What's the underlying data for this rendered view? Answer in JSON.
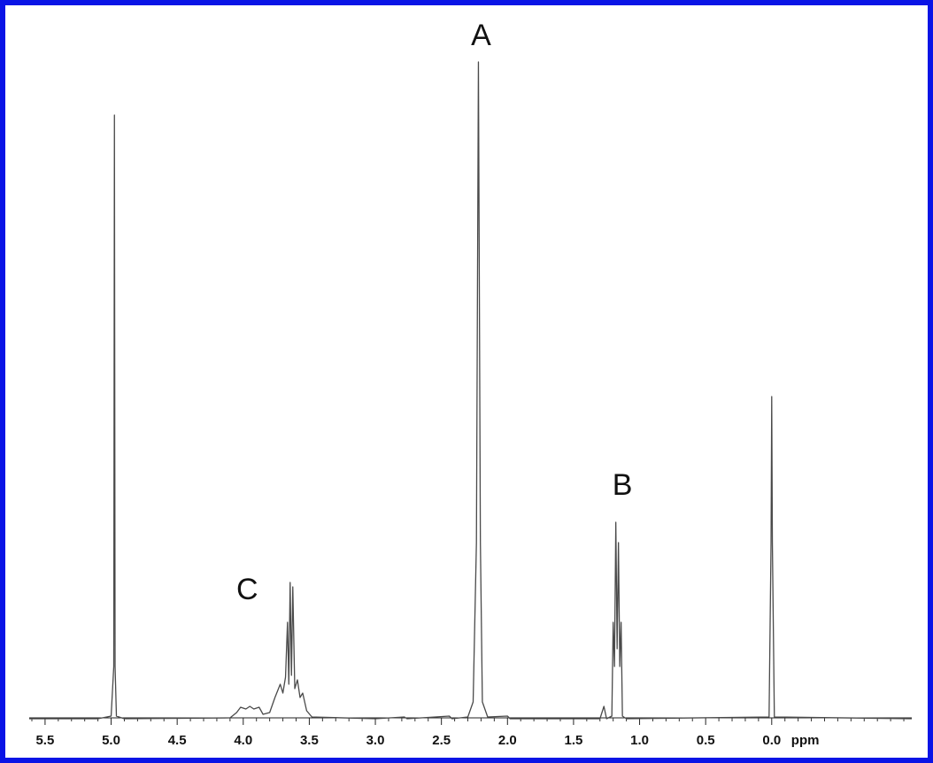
{
  "chart_data": {
    "type": "line",
    "x_label": "ppm",
    "x_reversed": true,
    "xlim": [
      5.62,
      -1.06
    ],
    "ylim": [
      0,
      760
    ],
    "xticks": [
      5.5,
      {
        "value": 5,
        "label": "5.0"
      },
      4.5,
      {
        "value": 4,
        "label": "4.0"
      },
      3.5,
      {
        "value": 3,
        "label": "3.0"
      },
      2.5,
      {
        "value": 2,
        "label": "2.0"
      },
      1.5,
      {
        "value": 1,
        "label": "1.0"
      },
      0.5,
      {
        "value": 0,
        "label": "0.0"
      }
    ],
    "minor_xticks": [
      5.6,
      5.4,
      5.3,
      5.2,
      5.1,
      4.9,
      4.8,
      4.7,
      4.6,
      4.4,
      4.3,
      4.2,
      4.1,
      3.9,
      3.8,
      3.7,
      3.6,
      3.4,
      3.3,
      3.2,
      3.1,
      2.9,
      2.8,
      2.7,
      2.6,
      2.4,
      2.3,
      2.2,
      2.1,
      1.9,
      1.8,
      1.7,
      1.6,
      1.4,
      1.3,
      1.2,
      1.1,
      0.9,
      0.8,
      0.7,
      0.6,
      0.4,
      0.3,
      0.2,
      0.1,
      -0.1,
      -0.2,
      -0.3,
      -0.4,
      -0.5,
      -0.6,
      -0.7,
      -0.8,
      -0.9,
      -1.0
    ],
    "border_color": "#0a14e6",
    "series": [
      {
        "color": "#4a4a4a",
        "x": [
          5.62,
          5.1,
          5.0,
          4.98,
          4.975,
          4.97,
          4.96,
          4.9,
          4.1,
          4.05,
          4.02,
          3.98,
          3.95,
          3.92,
          3.88,
          3.85,
          3.8,
          3.76,
          3.72,
          3.7,
          3.68,
          3.665,
          3.655,
          3.645,
          3.635,
          3.625,
          3.61,
          3.59,
          3.57,
          3.55,
          3.52,
          3.48,
          3.0,
          2.78,
          2.76,
          2.44,
          2.42,
          2.3,
          2.26,
          2.235,
          2.22,
          2.205,
          2.19,
          2.15,
          2.0,
          1.98,
          1.3,
          1.27,
          1.25,
          1.21,
          1.2,
          1.19,
          1.18,
          1.17,
          1.16,
          1.15,
          1.14,
          1.13,
          1.1,
          0.02,
          0.005,
          0.0,
          -0.005,
          -0.02,
          -1.06
        ],
        "values": [
          1,
          1,
          4,
          60,
          683,
          60,
          4,
          1,
          2,
          8,
          14,
          12,
          15,
          12,
          14,
          6,
          8,
          25,
          40,
          30,
          48,
          110,
          40,
          155,
          50,
          150,
          35,
          45,
          25,
          30,
          10,
          3,
          1,
          3,
          1,
          4,
          1,
          3,
          20,
          200,
          743,
          200,
          20,
          3,
          4,
          1,
          1,
          15,
          1,
          4,
          110,
          60,
          223,
          80,
          200,
          60,
          110,
          4,
          1,
          3,
          200,
          365,
          200,
          3,
          1
        ]
      }
    ],
    "annotations": [
      {
        "text": "A",
        "x": 2.2,
        "y": 771
      },
      {
        "text": "B",
        "x": 1.13,
        "y": 263
      },
      {
        "text": "C",
        "x": 3.97,
        "y": 145
      }
    ]
  }
}
